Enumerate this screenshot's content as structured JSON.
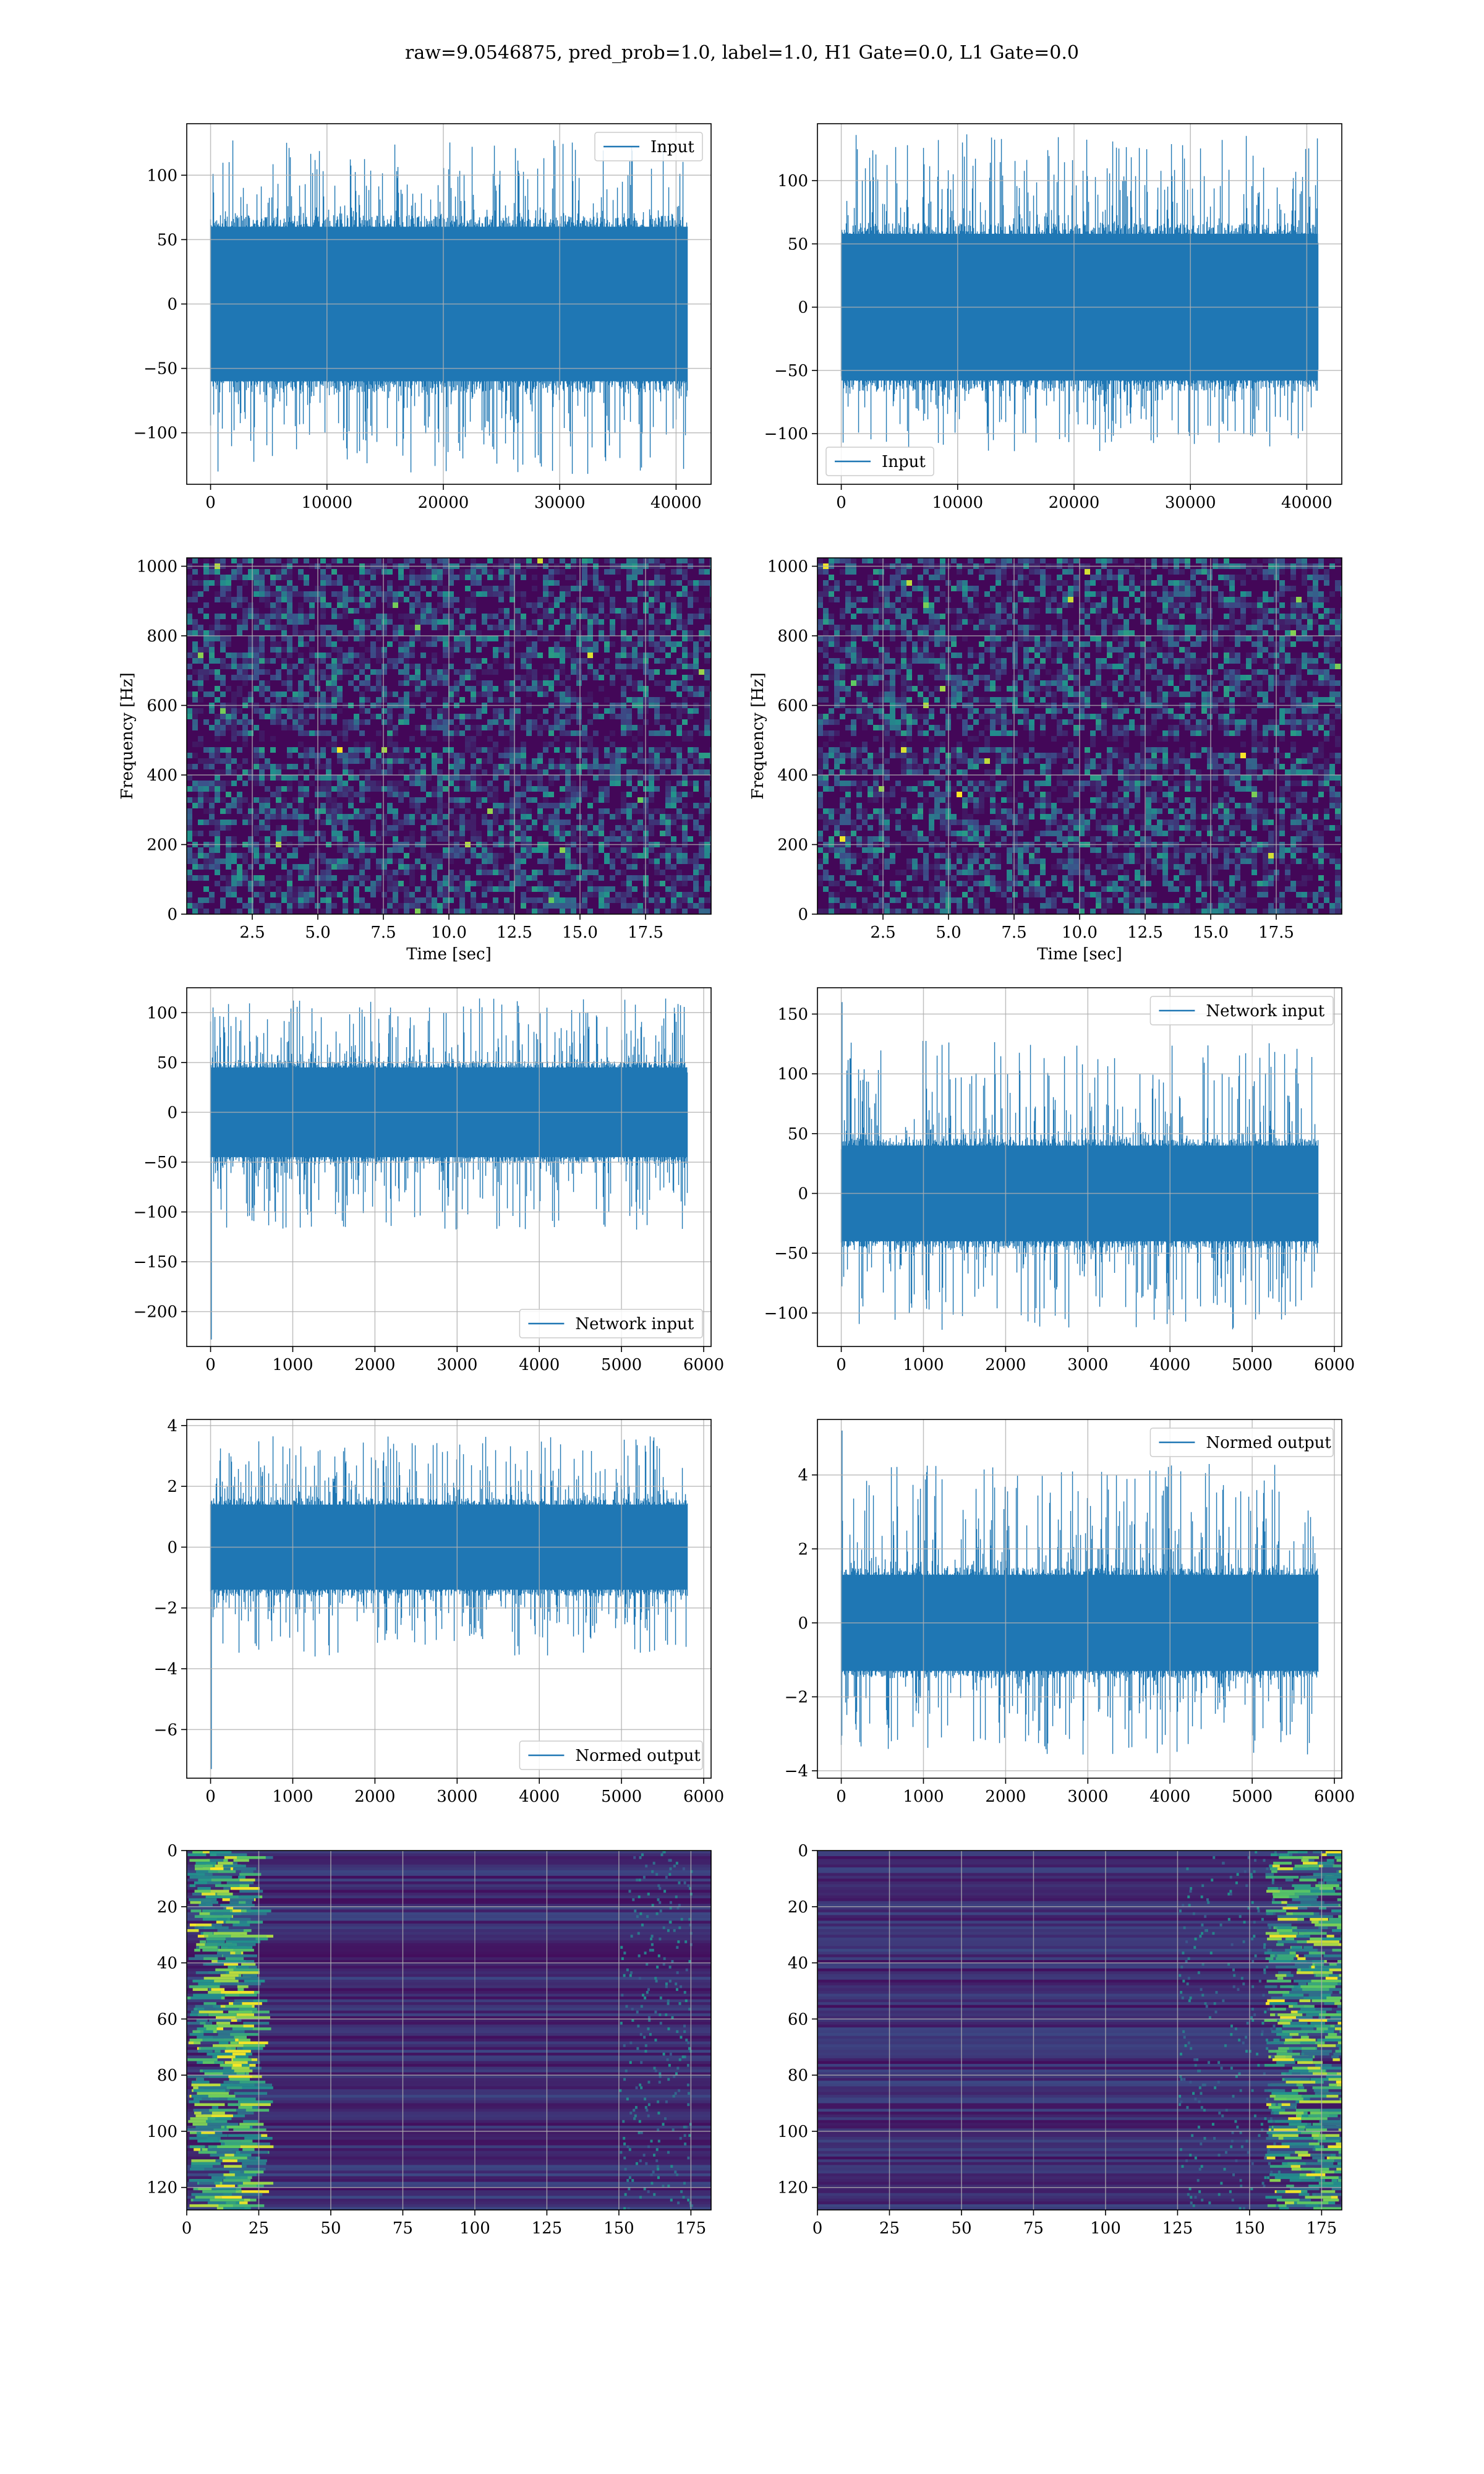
{
  "figure": {
    "suptitle": "raw=9.0546875, pred_prob=1.0, label=1.0, H1 Gate=0.0, L1 Gate=0.0",
    "colors": {
      "line": "#1f77b4",
      "grid": "#b0b0b0",
      "spines": "#000000"
    }
  },
  "chart_data": [
    {
      "id": "raw-h1",
      "type": "line",
      "title": "",
      "xlabel": "",
      "ylabel": "",
      "xlim": [
        -2048,
        43008
      ],
      "ylim": [
        -140,
        140
      ],
      "xticks": [
        0,
        10000,
        20000,
        30000,
        40000
      ],
      "xticklabels": [
        "0",
        "10000",
        "20000",
        "30000",
        "40000"
      ],
      "yticks": [
        -100,
        -50,
        0,
        50,
        100
      ],
      "yticklabels": [
        "−100",
        "−50",
        "0",
        "50",
        "100"
      ],
      "grid": true,
      "legend": {
        "loc": "upper right",
        "entries": [
          "Input"
        ]
      },
      "series": [
        {
          "name": "Input",
          "x_range": [
            0,
            40960
          ],
          "envelope": [
            -132,
            128
          ],
          "core_band": [
            -60,
            60
          ]
        }
      ]
    },
    {
      "id": "raw-l1",
      "type": "line",
      "title": "",
      "xlabel": "",
      "ylabel": "",
      "xlim": [
        -2048,
        43008
      ],
      "ylim": [
        -140,
        145
      ],
      "xticks": [
        0,
        10000,
        20000,
        30000,
        40000
      ],
      "xticklabels": [
        "0",
        "10000",
        "20000",
        "30000",
        "40000"
      ],
      "yticks": [
        -100,
        -50,
        0,
        50,
        100
      ],
      "yticklabels": [
        "−100",
        "−50",
        "0",
        "50",
        "100"
      ],
      "grid": true,
      "legend": {
        "loc": "lower left",
        "entries": [
          "Input"
        ]
      },
      "series": [
        {
          "name": "Input",
          "x_range": [
            0,
            40960
          ],
          "envelope": [
            -114,
            137
          ],
          "core_band": [
            -58,
            58
          ]
        }
      ]
    },
    {
      "id": "spec-h1",
      "type": "heatmap",
      "title": "",
      "xlabel": "Time [sec]",
      "ylabel": "Frequency [Hz]",
      "xlim": [
        0,
        20
      ],
      "ylim": [
        0,
        1024
      ],
      "xticks": [
        2.5,
        5.0,
        7.5,
        10.0,
        12.5,
        15.0,
        17.5
      ],
      "xticklabels": [
        "2.5",
        "5.0",
        "7.5",
        "10.0",
        "12.5",
        "15.0",
        "17.5"
      ],
      "yticks": [
        0,
        200,
        400,
        600,
        800,
        1000
      ],
      "yticklabels": [
        "0",
        "200",
        "400",
        "600",
        "800",
        "1000"
      ],
      "grid": true,
      "colormap": "viridis",
      "features": {
        "dark_band_hz": [
          490,
          520
        ]
      }
    },
    {
      "id": "spec-l1",
      "type": "heatmap",
      "title": "",
      "xlabel": "Time [sec]",
      "ylabel": "Frequency [Hz]",
      "xlim": [
        0,
        20
      ],
      "ylim": [
        0,
        1024
      ],
      "xticks": [
        2.5,
        5.0,
        7.5,
        10.0,
        12.5,
        15.0,
        17.5
      ],
      "xticklabels": [
        "2.5",
        "5.0",
        "7.5",
        "10.0",
        "12.5",
        "15.0",
        "17.5"
      ],
      "yticks": [
        0,
        200,
        400,
        600,
        800,
        1000
      ],
      "yticklabels": [
        "0",
        "200",
        "400",
        "600",
        "800",
        "1000"
      ],
      "grid": true,
      "colormap": "viridis",
      "features": {
        "dark_band_hz": [
          490,
          520
        ]
      }
    },
    {
      "id": "net-h1",
      "type": "line",
      "title": "",
      "xlabel": "",
      "ylabel": "",
      "xlim": [
        -290,
        6090
      ],
      "ylim": [
        -235,
        125
      ],
      "xticks": [
        0,
        1000,
        2000,
        3000,
        4000,
        5000,
        6000
      ],
      "xticklabels": [
        "0",
        "1000",
        "2000",
        "3000",
        "4000",
        "5000",
        "6000"
      ],
      "yticks": [
        -200,
        -150,
        -100,
        -50,
        0,
        50,
        100
      ],
      "yticklabels": [
        "−200",
        "−150",
        "−100",
        "−50",
        "0",
        "50",
        "100"
      ],
      "grid": true,
      "legend": {
        "loc": "lower right",
        "entries": [
          "Network input"
        ]
      },
      "series": [
        {
          "name": "Network input",
          "x_range": [
            0,
            5800
          ],
          "envelope": [
            -118,
            115
          ],
          "core_band": [
            -45,
            45
          ],
          "start_spike": -228
        }
      ]
    },
    {
      "id": "net-l1",
      "type": "line",
      "title": "",
      "xlabel": "",
      "ylabel": "",
      "xlim": [
        -290,
        6090
      ],
      "ylim": [
        -128,
        172
      ],
      "xticks": [
        0,
        1000,
        2000,
        3000,
        4000,
        5000,
        6000
      ],
      "xticklabels": [
        "0",
        "1000",
        "2000",
        "3000",
        "4000",
        "5000",
        "6000"
      ],
      "yticks": [
        -100,
        -50,
        0,
        50,
        100,
        150
      ],
      "yticklabels": [
        "−100",
        "−50",
        "0",
        "50",
        "100",
        "150"
      ],
      "grid": true,
      "legend": {
        "loc": "upper right",
        "entries": [
          "Network input"
        ]
      },
      "series": [
        {
          "name": "Network input",
          "x_range": [
            0,
            5800
          ],
          "envelope": [
            -115,
            128
          ],
          "core_band": [
            -40,
            40
          ],
          "start_spike": 160
        }
      ]
    },
    {
      "id": "norm-h1",
      "type": "line",
      "title": "",
      "xlabel": "",
      "ylabel": "",
      "xlim": [
        -290,
        6090
      ],
      "ylim": [
        -7.6,
        4.2
      ],
      "xticks": [
        0,
        1000,
        2000,
        3000,
        4000,
        5000,
        6000
      ],
      "xticklabels": [
        "0",
        "1000",
        "2000",
        "3000",
        "4000",
        "5000",
        "6000"
      ],
      "yticks": [
        -6,
        -4,
        -2,
        0,
        2,
        4
      ],
      "yticklabels": [
        "−6",
        "−4",
        "−2",
        "0",
        "2",
        "4"
      ],
      "grid": true,
      "legend": {
        "loc": "lower right",
        "entries": [
          "Normed output"
        ]
      },
      "series": [
        {
          "name": "Normed output",
          "x_range": [
            0,
            5800
          ],
          "envelope": [
            -3.6,
            3.7
          ],
          "core_band": [
            -1.4,
            1.4
          ],
          "start_spike": -7.3
        }
      ]
    },
    {
      "id": "norm-l1",
      "type": "line",
      "title": "",
      "xlabel": "",
      "ylabel": "",
      "xlim": [
        -290,
        6090
      ],
      "ylim": [
        -4.2,
        5.5
      ],
      "xticks": [
        0,
        1000,
        2000,
        3000,
        4000,
        5000,
        6000
      ],
      "xticklabels": [
        "0",
        "1000",
        "2000",
        "3000",
        "4000",
        "5000",
        "6000"
      ],
      "yticks": [
        -4,
        -2,
        0,
        2,
        4
      ],
      "yticklabels": [
        "−4",
        "−2",
        "0",
        "2",
        "4"
      ],
      "grid": true,
      "legend": {
        "loc": "upper right",
        "entries": [
          "Normed output"
        ]
      },
      "series": [
        {
          "name": "Normed output",
          "x_range": [
            0,
            5800
          ],
          "envelope": [
            -3.6,
            4.3
          ],
          "core_band": [
            -1.3,
            1.3
          ],
          "start_spike": 5.2
        }
      ]
    },
    {
      "id": "feat-h1",
      "type": "heatmap",
      "title": "",
      "xlabel": "",
      "ylabel": "",
      "xlim": [
        0,
        182
      ],
      "ylim": [
        128,
        0
      ],
      "xticks": [
        0,
        25,
        50,
        75,
        100,
        125,
        150,
        175
      ],
      "xticklabels": [
        "0",
        "25",
        "50",
        "75",
        "100",
        "125",
        "150",
        "175"
      ],
      "yticks": [
        0,
        20,
        40,
        60,
        80,
        100,
        120
      ],
      "yticklabels": [
        "0",
        "20",
        "40",
        "60",
        "80",
        "100",
        "120"
      ],
      "grid": true,
      "colormap": "viridis",
      "features": {
        "bright_region": "left",
        "bright_x_range": [
          0,
          20
        ],
        "edge_band_x": [
          150,
          175
        ]
      }
    },
    {
      "id": "feat-l1",
      "type": "heatmap",
      "title": "",
      "xlabel": "",
      "ylabel": "",
      "xlim": [
        0,
        182
      ],
      "ylim": [
        128,
        0
      ],
      "xticks": [
        0,
        25,
        50,
        75,
        100,
        125,
        150,
        175
      ],
      "xticklabels": [
        "0",
        "25",
        "50",
        "75",
        "100",
        "125",
        "150",
        "175"
      ],
      "yticks": [
        0,
        20,
        40,
        60,
        80,
        100,
        120
      ],
      "yticklabels": [
        "0",
        "20",
        "40",
        "60",
        "80",
        "100",
        "120"
      ],
      "grid": true,
      "colormap": "viridis",
      "features": {
        "bright_region": "right",
        "bright_x_range": [
          155,
          182
        ],
        "edge_band_x": [
          125,
          160
        ]
      }
    }
  ]
}
